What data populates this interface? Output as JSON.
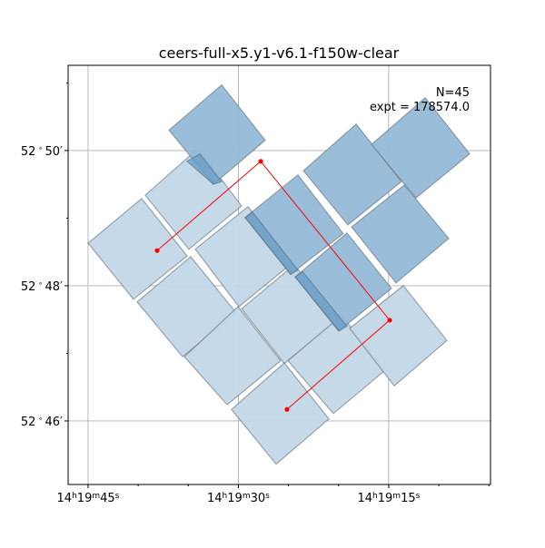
{
  "chart_data": {
    "type": "footprint",
    "title": "ceers-full-x5.y1-v6.1-f150w-clear",
    "annotations": [
      "N=45",
      "expt = 178574.0"
    ],
    "xlabel": "",
    "ylabel": "",
    "x_units": "RA seconds past 14h19m",
    "y_units": "Dec arcmin past 52 deg",
    "xlim": [
      46.99,
      4.84
    ],
    "ylim": [
      45.06,
      51.26
    ],
    "grid": true,
    "x_major_ticks": [
      {
        "value": 45,
        "h": "14",
        "m": "19",
        "s": "45"
      },
      {
        "value": 30,
        "h": "14",
        "m": "19",
        "s": "30"
      },
      {
        "value": 15,
        "h": "14",
        "m": "19",
        "s": "15"
      }
    ],
    "x_minor_ticks": [
      40,
      35,
      25,
      20,
      10,
      5
    ],
    "y_major_ticks": [
      {
        "value": 50,
        "label": "52$^\\circ$50$'$",
        "deg": "52",
        "min": "50"
      },
      {
        "value": 48,
        "deg": "52",
        "min": "48"
      },
      {
        "value": 46,
        "deg": "52",
        "min": "46"
      }
    ],
    "y_minor_ticks": [
      51,
      49,
      47
    ],
    "colors": {
      "light": "#c3d7e8",
      "dark": "#95bad7",
      "overlap": "#6a9cc6",
      "edge": "#5a6670",
      "path": "#ff0000"
    },
    "footprints": [
      {
        "depth": "dark",
        "corners": [
          [
            36.93,
            50.3
          ],
          [
            31.67,
            50.97
          ],
          [
            27.32,
            50.15
          ],
          [
            32.49,
            49.5
          ]
        ]
      },
      {
        "depth": "dark",
        "corners": [
          [
            29.32,
            49.01
          ],
          [
            24.06,
            49.64
          ],
          [
            19.53,
            48.77
          ],
          [
            24.78,
            48.17
          ]
        ]
      },
      {
        "depth": "dark",
        "corners": [
          [
            23.51,
            49.7
          ],
          [
            18.25,
            50.39
          ],
          [
            13.72,
            49.54
          ],
          [
            19.07,
            48.9
          ]
        ]
      },
      {
        "depth": "dark",
        "corners": [
          [
            16.71,
            50.09
          ],
          [
            11.36,
            50.78
          ],
          [
            6.92,
            49.95
          ],
          [
            12.27,
            49.3
          ]
        ]
      },
      {
        "depth": "dark",
        "corners": [
          [
            18.71,
            48.87
          ],
          [
            13.45,
            49.49
          ],
          [
            9.01,
            48.7
          ],
          [
            14.27,
            48.04
          ]
        ]
      },
      {
        "depth": "dark",
        "corners": [
          [
            24.33,
            48.13
          ],
          [
            19.16,
            48.78
          ],
          [
            14.72,
            47.96
          ],
          [
            19.98,
            47.33
          ]
        ]
      },
      {
        "depth": "light",
        "corners": [
          [
            45.0,
            48.63
          ],
          [
            39.65,
            49.29
          ],
          [
            35.12,
            48.44
          ],
          [
            40.47,
            47.8
          ]
        ]
      },
      {
        "depth": "light",
        "corners": [
          [
            39.29,
            49.34
          ],
          [
            34.03,
            50.03
          ],
          [
            29.68,
            49.18
          ],
          [
            34.94,
            48.54
          ]
        ]
      },
      {
        "depth": "light",
        "corners": [
          [
            34.3,
            48.54
          ],
          [
            29.04,
            49.17
          ],
          [
            24.6,
            48.34
          ],
          [
            29.95,
            47.69
          ]
        ]
      },
      {
        "depth": "light",
        "corners": [
          [
            40.1,
            47.76
          ],
          [
            34.76,
            48.43
          ],
          [
            30.22,
            47.6
          ],
          [
            35.57,
            46.95
          ]
        ]
      },
      {
        "depth": "light",
        "corners": [
          [
            29.68,
            47.66
          ],
          [
            24.42,
            48.31
          ],
          [
            20.07,
            47.49
          ],
          [
            25.42,
            46.85
          ]
        ]
      },
      {
        "depth": "light",
        "corners": [
          [
            35.39,
            46.95
          ],
          [
            30.04,
            47.69
          ],
          [
            25.78,
            46.89
          ],
          [
            31.13,
            46.24
          ]
        ]
      },
      {
        "depth": "light",
        "corners": [
          [
            25.05,
            46.89
          ],
          [
            19.71,
            47.56
          ],
          [
            15.35,
            46.75
          ],
          [
            20.52,
            46.11
          ]
        ]
      },
      {
        "depth": "light",
        "corners": [
          [
            18.89,
            47.37
          ],
          [
            13.54,
            48.0
          ],
          [
            9.19,
            47.19
          ],
          [
            14.45,
            46.52
          ]
        ]
      },
      {
        "depth": "light",
        "corners": [
          [
            30.68,
            46.17
          ],
          [
            25.42,
            46.86
          ],
          [
            20.97,
            46.03
          ],
          [
            26.23,
            45.36
          ]
        ]
      },
      {
        "depth": "overlap",
        "corners": [
          [
            35.12,
            49.84
          ],
          [
            33.85,
            49.95
          ],
          [
            31.67,
            49.54
          ],
          [
            32.49,
            49.5
          ]
        ]
      },
      {
        "depth": "overlap",
        "corners": [
          [
            29.32,
            49.01
          ],
          [
            28.59,
            49.09
          ],
          [
            24.06,
            48.23
          ],
          [
            24.78,
            48.17
          ]
        ]
      },
      {
        "depth": "overlap",
        "corners": [
          [
            24.33,
            48.13
          ],
          [
            23.6,
            48.21
          ],
          [
            19.16,
            47.4
          ],
          [
            19.98,
            47.33
          ]
        ]
      }
    ],
    "path": [
      [
        38.11,
        48.52
      ],
      [
        27.77,
        49.84
      ],
      [
        14.9,
        47.49
      ],
      [
        25.15,
        46.17
      ]
    ]
  }
}
